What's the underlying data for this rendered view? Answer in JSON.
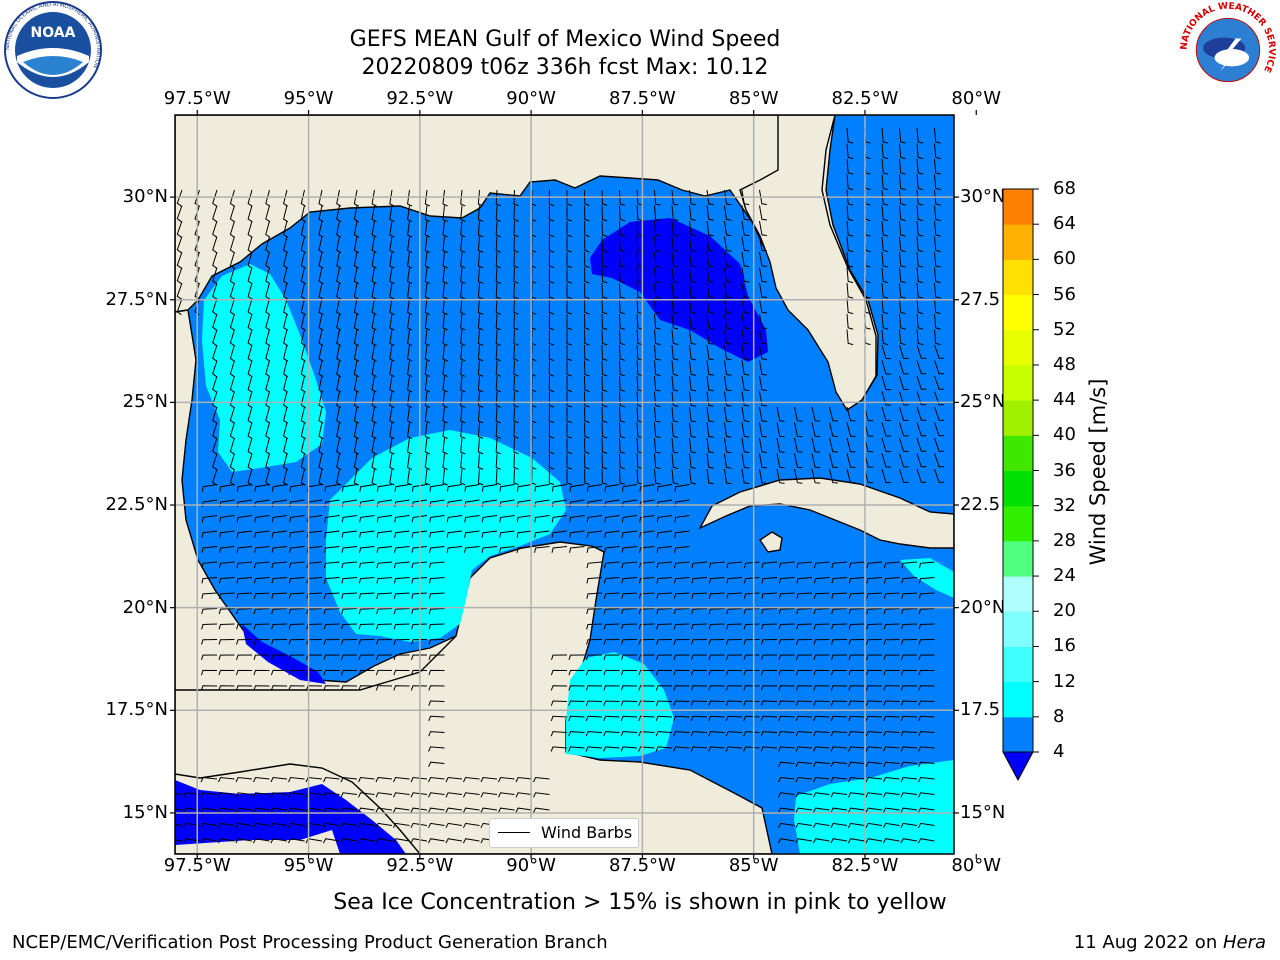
{
  "title_line1": "GEFS MEAN Gulf of Mexico Wind Speed",
  "title_line2": "20220809 t06z 336h fcst   Max: 10.12",
  "caption": "Sea Ice Concentration > 15% is shown in pink to yellow",
  "footer_left": "NCEP/EMC/Verification Post Processing Product Generation Branch",
  "footer_right_prefix": "11 Aug 2022 on ",
  "footer_right_machine": "Hera",
  "legend_label": "Wind Barbs",
  "logos": {
    "left": "NOAA",
    "left_ring": "NATIONAL OCEANIC AND ATMOSPHERIC ADMINISTRATION",
    "right_ring": "NATIONAL WEATHER SERVICE"
  },
  "colors": {
    "land": "#efecdc",
    "level1": "#0000ff",
    "level2": "#0080ff",
    "level3": "#00ffff",
    "grid": "#b0b0b0"
  },
  "chart_data": {
    "type": "heatmap",
    "title": "GEFS MEAN Gulf of Mexico Wind Speed",
    "subtitle": "20220809 t06z 336h fcst   Max: 10.12",
    "xlim": [
      -98,
      -80.5
    ],
    "ylim": [
      14,
      32
    ],
    "x_ticks": [
      "97.5°W",
      "95°W",
      "92.5°W",
      "90°W",
      "87.5°W",
      "85°W",
      "82.5°W",
      "80°W"
    ],
    "y_ticks_left": [
      "30°N",
      "27.5°N",
      "25°N",
      "22.5°N",
      "20°N",
      "17.5°N",
      "15°N"
    ],
    "y_ticks_right": [
      "30°N",
      "27.5",
      "25°N",
      "22.5",
      "20°N",
      "17.5",
      "15°N"
    ],
    "grid": true,
    "legend": {
      "entries": [
        "Wind Barbs"
      ],
      "placement": "bottom-center"
    },
    "colorbar": {
      "label": "Wind Speed [m/s]",
      "ticks": [
        "4",
        "8",
        "12",
        "16",
        "20",
        "24",
        "28",
        "32",
        "36",
        "40",
        "44",
        "48",
        "52",
        "56",
        "60",
        "64",
        "68"
      ],
      "colors": [
        "#0080ff",
        "#00ffff",
        "#40ffff",
        "#80ffff",
        "#b0ffff",
        "#50ff80",
        "#30f000",
        "#00e000",
        "#40e800",
        "#a0f000",
        "#c8ff00",
        "#e8ff00",
        "#ffff00",
        "#ffe000",
        "#ffb000",
        "#ff8000",
        "#ff5000",
        "#ff2000",
        "#ff0000"
      ],
      "below_color": "#0000ff"
    },
    "regions": [
      {
        "label": "4-8 m/s",
        "color": "#0080ff",
        "extent": "most of the Gulf of Mexico and Caribbean"
      },
      {
        "label": "8-12 m/s (west)",
        "color": "#00ffff",
        "center": [
          -96.5,
          26
        ]
      },
      {
        "label": "8-12 m/s (Bay of Campeche)",
        "color": "#00ffff",
        "center": [
          -91.5,
          21.5
        ]
      },
      {
        "label": "8-12 m/s (Yucatan Channel)",
        "color": "#00ffff",
        "center": [
          -87,
          17.5
        ]
      },
      {
        "label": "8-12 m/s (SE Caribbean)",
        "color": "#00ffff",
        "center": [
          -81.5,
          15
        ]
      },
      {
        "label": "<4 m/s (NE Gulf)",
        "color": "#0000ff",
        "center": [
          -85.5,
          27.8
        ]
      }
    ]
  }
}
